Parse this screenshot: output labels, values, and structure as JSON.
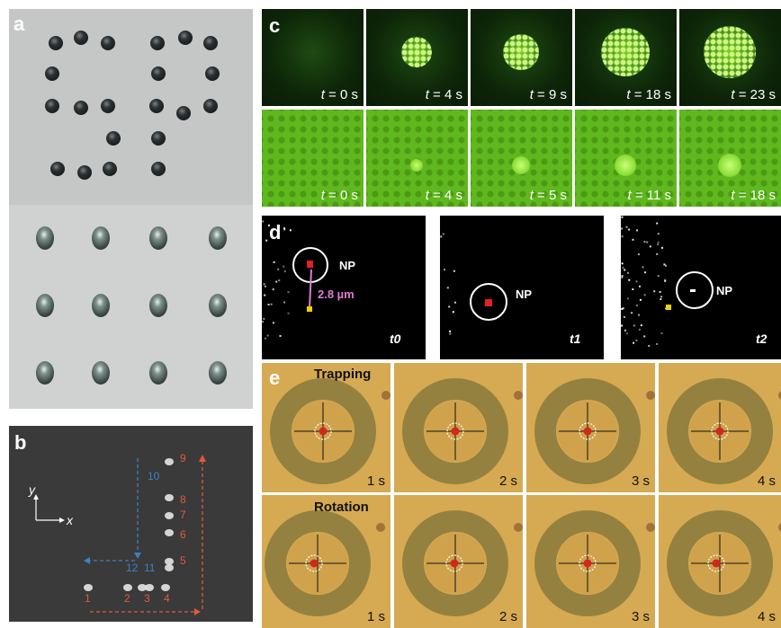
{
  "panels": {
    "a": {
      "label": "a"
    },
    "b": {
      "label": "b",
      "y_axis": "y",
      "x_axis": "x",
      "red_numbers": [
        "1",
        "2",
        "3",
        "4",
        "5",
        "6",
        "7",
        "8",
        "9"
      ],
      "blue_numbers": [
        "10",
        "11",
        "12"
      ]
    },
    "c": {
      "label": "c",
      "top_times": [
        "t = 0 s",
        "t = 4 s",
        "t = 9 s",
        "t = 18 s",
        "t = 23 s"
      ],
      "bottom_times": [
        "t = 0 s",
        "t = 4 s",
        "t = 5 s",
        "t = 11 s",
        "t = 18 s"
      ]
    },
    "d": {
      "label": "d",
      "np": "NP",
      "distance": "2.8 µm",
      "frames": [
        "t0",
        "t1",
        "t2"
      ]
    },
    "e": {
      "label": "e",
      "row1_title": "Trapping",
      "row2_title": "Rotation",
      "times": [
        "1 s",
        "2 s",
        "3 s",
        "4 s"
      ]
    }
  },
  "colors": {
    "green_dark": "#0e2a0a",
    "green_bright": "#6fc21c",
    "tan": "#d3a850",
    "red_label": "#e05a3a",
    "blue_label": "#3b82c4",
    "pink": "#e07ad6"
  }
}
